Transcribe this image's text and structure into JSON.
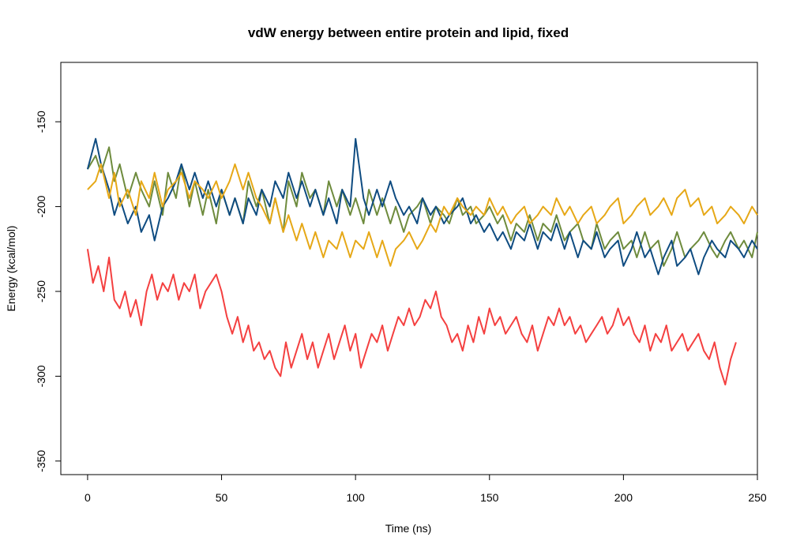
{
  "chart_data": {
    "type": "line",
    "title": "vdW energy between entire protein and lipid, fixed",
    "xlabel": "Time (ns)",
    "ylabel": "Energy (kcal/mol)",
    "xlim": [
      -10,
      250
    ],
    "ylim": [
      -358,
      -115
    ],
    "xticks": [
      0,
      50,
      100,
      150,
      200,
      250
    ],
    "yticks": [
      -350,
      -300,
      -250,
      -200,
      -150
    ],
    "grid": false,
    "legend": "none",
    "series": [
      {
        "color": "#6e8b3d",
        "x": [
          0,
          3,
          5,
          8,
          10,
          12,
          15,
          18,
          20,
          23,
          25,
          28,
          30,
          33,
          35,
          38,
          40,
          43,
          45,
          48,
          50,
          53,
          55,
          58,
          60,
          63,
          65,
          68,
          70,
          73,
          75,
          78,
          80,
          83,
          85,
          88,
          90,
          93,
          95,
          98,
          100,
          103,
          105,
          108,
          110,
          113,
          115,
          118,
          120,
          123,
          125,
          128,
          130,
          133,
          135,
          138,
          140,
          143,
          145,
          148,
          150,
          153,
          155,
          158,
          160,
          163,
          165,
          168,
          170,
          173,
          175,
          178,
          180,
          183,
          185,
          188,
          190,
          193,
          195,
          198,
          200,
          203,
          205,
          208,
          210,
          213,
          215,
          218,
          220,
          223,
          225,
          228,
          230,
          233,
          235,
          238,
          240,
          243,
          245,
          248,
          250
        ],
        "y": [
          -178,
          -170,
          -180,
          -165,
          -185,
          -175,
          -195,
          -180,
          -190,
          -200,
          -185,
          -205,
          -180,
          -195,
          -175,
          -200,
          -185,
          -205,
          -190,
          -210,
          -190,
          -205,
          -195,
          -210,
          -185,
          -200,
          -190,
          -210,
          -195,
          -215,
          -185,
          -200,
          -180,
          -195,
          -190,
          -205,
          -185,
          -200,
          -190,
          -205,
          -195,
          -210,
          -190,
          -205,
          -195,
          -210,
          -200,
          -215,
          -205,
          -200,
          -195,
          -210,
          -200,
          -205,
          -210,
          -195,
          -205,
          -200,
          -210,
          -205,
          -200,
          -210,
          -205,
          -220,
          -210,
          -215,
          -205,
          -220,
          -210,
          -215,
          -205,
          -220,
          -215,
          -210,
          -220,
          -225,
          -210,
          -225,
          -220,
          -215,
          -225,
          -220,
          -230,
          -215,
          -225,
          -220,
          -235,
          -225,
          -215,
          -230,
          -225,
          -220,
          -215,
          -225,
          -230,
          -220,
          -215,
          -225,
          -220,
          -230,
          -215
        ]
      },
      {
        "color": "#0f4c81",
        "x": [
          0,
          3,
          5,
          8,
          10,
          12,
          15,
          18,
          20,
          23,
          25,
          28,
          30,
          33,
          35,
          38,
          40,
          43,
          45,
          48,
          50,
          53,
          55,
          58,
          60,
          63,
          65,
          68,
          70,
          73,
          75,
          78,
          80,
          83,
          85,
          88,
          90,
          93,
          95,
          98,
          100,
          103,
          105,
          108,
          110,
          113,
          115,
          118,
          120,
          123,
          125,
          128,
          130,
          133,
          135,
          138,
          140,
          143,
          145,
          148,
          150,
          153,
          155,
          158,
          160,
          163,
          165,
          168,
          170,
          173,
          175,
          178,
          180,
          183,
          185,
          188,
          190,
          193,
          195,
          198,
          200,
          203,
          205,
          208,
          210,
          213,
          215,
          218,
          220,
          223,
          225,
          228,
          230,
          233,
          235,
          238,
          240,
          243,
          245,
          248,
          250
        ],
        "y": [
          -178,
          -160,
          -175,
          -190,
          -205,
          -195,
          -210,
          -200,
          -215,
          -205,
          -220,
          -200,
          -195,
          -185,
          -175,
          -190,
          -180,
          -195,
          -185,
          -200,
          -190,
          -205,
          -195,
          -210,
          -195,
          -205,
          -190,
          -200,
          -185,
          -195,
          -180,
          -195,
          -185,
          -200,
          -190,
          -205,
          -195,
          -210,
          -190,
          -200,
          -160,
          -195,
          -205,
          -190,
          -200,
          -185,
          -195,
          -205,
          -200,
          -210,
          -195,
          -205,
          -200,
          -210,
          -205,
          -200,
          -195,
          -210,
          -205,
          -215,
          -210,
          -220,
          -215,
          -225,
          -215,
          -220,
          -210,
          -225,
          -215,
          -220,
          -210,
          -225,
          -215,
          -230,
          -220,
          -225,
          -215,
          -230,
          -225,
          -220,
          -235,
          -225,
          -215,
          -230,
          -225,
          -240,
          -230,
          -220,
          -235,
          -230,
          -225,
          -240,
          -230,
          -220,
          -225,
          -230,
          -220,
          -225,
          -230,
          -220,
          -225
        ]
      },
      {
        "color": "#e6a817",
        "x": [
          0,
          3,
          5,
          8,
          10,
          12,
          15,
          18,
          20,
          23,
          25,
          28,
          30,
          33,
          35,
          38,
          40,
          43,
          45,
          48,
          50,
          53,
          55,
          58,
          60,
          63,
          65,
          68,
          70,
          73,
          75,
          78,
          80,
          83,
          85,
          88,
          90,
          93,
          95,
          98,
          100,
          103,
          105,
          108,
          110,
          113,
          115,
          118,
          120,
          123,
          125,
          128,
          130,
          133,
          135,
          138,
          140,
          143,
          145,
          148,
          150,
          153,
          155,
          158,
          160,
          163,
          165,
          168,
          170,
          173,
          175,
          178,
          180,
          183,
          185,
          188,
          190,
          193,
          195,
          198,
          200,
          203,
          205,
          208,
          210,
          213,
          215,
          218,
          220,
          223,
          225,
          228,
          230,
          233,
          235,
          238,
          240,
          243,
          245,
          248,
          250
        ],
        "y": [
          -190,
          -185,
          -175,
          -195,
          -180,
          -200,
          -190,
          -205,
          -185,
          -195,
          -180,
          -200,
          -190,
          -185,
          -180,
          -195,
          -185,
          -190,
          -195,
          -185,
          -195,
          -185,
          -175,
          -190,
          -180,
          -195,
          -200,
          -210,
          -195,
          -215,
          -205,
          -220,
          -210,
          -225,
          -215,
          -230,
          -220,
          -225,
          -215,
          -230,
          -220,
          -225,
          -215,
          -230,
          -220,
          -235,
          -225,
          -220,
          -215,
          -225,
          -220,
          -210,
          -215,
          -200,
          -205,
          -195,
          -200,
          -205,
          -200,
          -205,
          -195,
          -205,
          -200,
          -210,
          -205,
          -200,
          -210,
          -205,
          -200,
          -205,
          -195,
          -205,
          -200,
          -210,
          -205,
          -200,
          -210,
          -205,
          -200,
          -195,
          -210,
          -205,
          -200,
          -195,
          -205,
          -200,
          -195,
          -205,
          -195,
          -190,
          -200,
          -195,
          -205,
          -200,
          -210,
          -205,
          -200,
          -205,
          -210,
          -200,
          -205
        ]
      },
      {
        "color": "#f44040",
        "x": [
          0,
          2,
          4,
          6,
          8,
          10,
          12,
          14,
          16,
          18,
          20,
          22,
          24,
          26,
          28,
          30,
          32,
          34,
          36,
          38,
          40,
          42,
          44,
          46,
          48,
          50,
          52,
          54,
          56,
          58,
          60,
          62,
          64,
          66,
          68,
          70,
          72,
          74,
          76,
          78,
          80,
          82,
          84,
          86,
          88,
          90,
          92,
          94,
          96,
          98,
          100,
          102,
          104,
          106,
          108,
          110,
          112,
          114,
          116,
          118,
          120,
          122,
          124,
          126,
          128,
          130,
          132,
          134,
          136,
          138,
          140,
          142,
          144,
          146,
          148,
          150,
          152,
          154,
          156,
          158,
          160,
          162,
          164,
          166,
          168,
          170,
          172,
          174,
          176,
          178,
          180,
          182,
          184,
          186,
          188,
          190,
          192,
          194,
          196,
          198,
          200,
          202,
          204,
          206,
          208,
          210,
          212,
          214,
          216,
          218,
          220,
          222,
          224,
          226,
          228,
          230,
          232,
          234,
          236,
          238,
          240,
          242
        ],
        "y": [
          -225,
          -245,
          -235,
          -250,
          -230,
          -255,
          -260,
          -250,
          -265,
          -255,
          -270,
          -250,
          -240,
          -255,
          -245,
          -250,
          -240,
          -255,
          -245,
          -250,
          -240,
          -260,
          -250,
          -245,
          -240,
          -250,
          -265,
          -275,
          -265,
          -280,
          -270,
          -285,
          -280,
          -290,
          -285,
          -295,
          -300,
          -280,
          -295,
          -285,
          -275,
          -290,
          -280,
          -295,
          -285,
          -275,
          -290,
          -280,
          -270,
          -285,
          -275,
          -295,
          -285,
          -275,
          -280,
          -270,
          -285,
          -275,
          -265,
          -270,
          -260,
          -270,
          -265,
          -255,
          -260,
          -250,
          -265,
          -270,
          -280,
          -275,
          -285,
          -270,
          -280,
          -265,
          -275,
          -260,
          -270,
          -265,
          -275,
          -270,
          -265,
          -275,
          -280,
          -270,
          -285,
          -275,
          -265,
          -270,
          -260,
          -270,
          -265,
          -275,
          -270,
          -280,
          -275,
          -270,
          -265,
          -275,
          -270,
          -260,
          -270,
          -265,
          -275,
          -280,
          -270,
          -285,
          -275,
          -280,
          -270,
          -285,
          -280,
          -275,
          -285,
          -280,
          -275,
          -285,
          -290,
          -280,
          -295,
          -305,
          -290,
          -280
        ]
      }
    ]
  }
}
